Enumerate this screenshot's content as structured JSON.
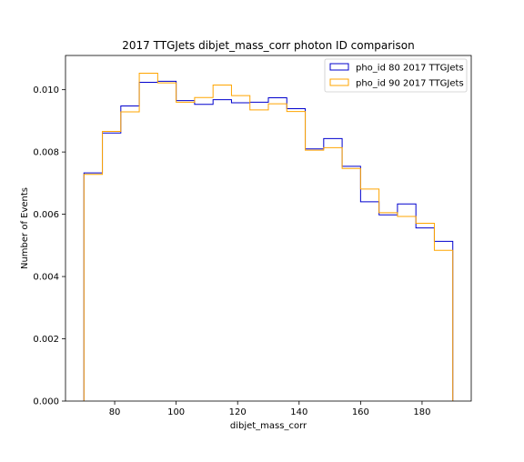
{
  "chart_data": {
    "type": "step-histogram",
    "title": "2017 TTGJets dibjet_mass_corr photon ID comparison",
    "xlabel": "dibjet_mass_corr",
    "ylabel": "Number of Events",
    "xlim": [
      64,
      196
    ],
    "ylim": [
      0,
      0.0111
    ],
    "xticks": [
      80,
      100,
      120,
      140,
      160,
      180
    ],
    "xtick_labels": [
      "80",
      "100",
      "120",
      "140",
      "160",
      "180"
    ],
    "yticks": [
      0,
      0.002,
      0.004,
      0.006,
      0.008,
      0.01
    ],
    "ytick_labels": [
      "0.000",
      "0.002",
      "0.004",
      "0.006",
      "0.008",
      "0.010"
    ],
    "bin_edges": [
      70,
      76,
      82,
      88,
      94,
      100,
      106,
      112,
      118,
      124,
      130,
      136,
      142,
      148,
      154,
      160,
      166,
      172,
      178,
      184,
      190
    ],
    "grid": false,
    "legend_position": "top-right",
    "series": [
      {
        "name": "pho_id 80 2017 TTGJets",
        "color": "#0000cd",
        "values": [
          0.00733,
          0.00861,
          0.00948,
          0.01024,
          0.01027,
          0.00965,
          0.00953,
          0.00968,
          0.00958,
          0.0096,
          0.00974,
          0.00939,
          0.0081,
          0.00843,
          0.00754,
          0.0064,
          0.00598,
          0.00633,
          0.00556,
          0.00513
        ]
      },
      {
        "name": "pho_id 90 2017 TTGJets",
        "color": "#ffa500",
        "values": [
          0.00728,
          0.00866,
          0.00929,
          0.01053,
          0.01022,
          0.0096,
          0.00975,
          0.01015,
          0.00981,
          0.00935,
          0.00955,
          0.0093,
          0.00806,
          0.00814,
          0.00747,
          0.00681,
          0.00605,
          0.00593,
          0.00571,
          0.00484
        ]
      }
    ]
  }
}
